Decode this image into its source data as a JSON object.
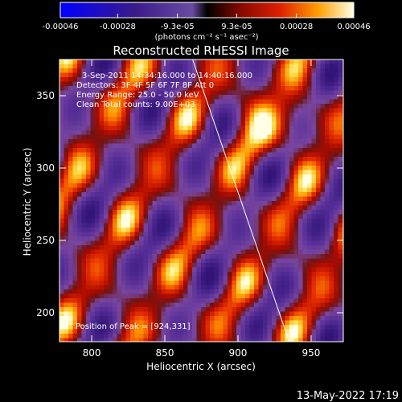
{
  "colorbar": {
    "tick_labels": [
      "-0.00046",
      "-0.00028",
      "-9.3e-05",
      "9.3e-05",
      "0.00028",
      "0.00046"
    ],
    "tick_values": [
      -0.00046,
      -0.00028,
      -9.3e-05,
      9.3e-05,
      0.00028,
      0.00046
    ],
    "unit_label": "(photons cm⁻² s⁻¹ asec⁻²)",
    "range": [
      -0.00046,
      0.00046
    ]
  },
  "chart_data": {
    "type": "heatmap",
    "title": "Reconstructed RHESSI Image",
    "xlabel": "Heliocentric X (arcsec)",
    "ylabel": "Heliocentric Y (arcsec)",
    "xlim": [
      778,
      972
    ],
    "ylim": [
      180,
      375
    ],
    "x_ticks": [
      800,
      850,
      900,
      950
    ],
    "y_ticks": [
      200,
      250,
      300,
      350
    ],
    "x_tick_labels": [
      "800",
      "850",
      "900",
      "950"
    ],
    "y_tick_labels": [
      "200",
      "250",
      "300",
      "350"
    ],
    "annotations": [
      "3-Sep-2011 14:34:16.000 to 14:40:16.000",
      "Detectors: 3F 4F 5F 6F 7F 8F  Att 0",
      "Energy Range: 25.0 - 50.0 keV",
      "Clean     Total counts: 9.00E+03"
    ],
    "peak_label": "Position of Peak = [924,331]",
    "peak": [
      924,
      331
    ],
    "limb_line": [
      [
        869,
        375
      ],
      [
        935,
        180
      ]
    ]
  },
  "footer": {
    "timestamp": "13-May-2022 17:19"
  }
}
